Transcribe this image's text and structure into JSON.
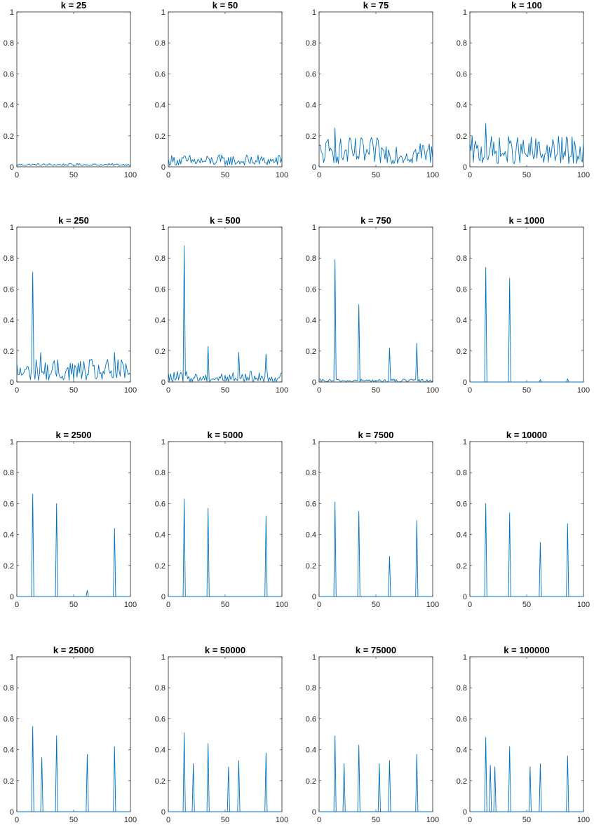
{
  "colors": {
    "series": "#0072BD",
    "axis": "#262626"
  },
  "chart_data": [
    {
      "type": "line",
      "title": "k = 25",
      "xlim": [
        0,
        100
      ],
      "ylim": [
        0,
        1
      ],
      "xticks": [
        0,
        50,
        100
      ],
      "yticks": [
        0,
        0.2,
        0.4,
        0.6,
        0.8,
        1
      ],
      "grid": false,
      "baseline": "noise",
      "noise": [
        0.008,
        0.022
      ],
      "peaks": []
    },
    {
      "type": "line",
      "title": "k = 50",
      "xlim": [
        0,
        100
      ],
      "ylim": [
        0,
        1
      ],
      "xticks": [
        0,
        50,
        100
      ],
      "yticks": [
        0,
        0.2,
        0.4,
        0.6,
        0.8,
        1
      ],
      "grid": false,
      "baseline": "noise",
      "noise": [
        0.01,
        0.08
      ],
      "peaks": []
    },
    {
      "type": "line",
      "title": "k = 75",
      "xlim": [
        0,
        100
      ],
      "ylim": [
        0,
        1
      ],
      "xticks": [
        0,
        50,
        100
      ],
      "yticks": [
        0,
        0.2,
        0.4,
        0.6,
        0.8,
        1
      ],
      "grid": false,
      "baseline": "noise",
      "noise": [
        0.02,
        0.19
      ],
      "peaks": [
        [
          14,
          0.25
        ]
      ]
    },
    {
      "type": "line",
      "title": "k = 100",
      "xlim": [
        0,
        100
      ],
      "ylim": [
        0,
        1
      ],
      "xticks": [
        0,
        50,
        100
      ],
      "yticks": [
        0,
        0.2,
        0.4,
        0.6,
        0.8,
        1
      ],
      "grid": false,
      "baseline": "noise",
      "noise": [
        0.02,
        0.2
      ],
      "peaks": [
        [
          14,
          0.28
        ]
      ]
    },
    {
      "type": "line",
      "title": "k = 250",
      "xlim": [
        0,
        100
      ],
      "ylim": [
        0,
        1
      ],
      "xticks": [
        0,
        50,
        100
      ],
      "yticks": [
        0,
        0.2,
        0.4,
        0.6,
        0.8,
        1
      ],
      "grid": false,
      "baseline": "noise",
      "noise": [
        0.01,
        0.15
      ],
      "peaks": [
        [
          14,
          0.71
        ],
        [
          21,
          0.19
        ],
        [
          86,
          0.19
        ]
      ]
    },
    {
      "type": "line",
      "title": "k = 500",
      "xlim": [
        0,
        100
      ],
      "ylim": [
        0,
        1
      ],
      "xticks": [
        0,
        50,
        100
      ],
      "yticks": [
        0,
        0.2,
        0.4,
        0.6,
        0.8,
        1
      ],
      "grid": false,
      "baseline": "noise",
      "noise": [
        0.0,
        0.07
      ],
      "peaks": [
        [
          14,
          0.88
        ],
        [
          35,
          0.23
        ],
        [
          62,
          0.19
        ],
        [
          86,
          0.18
        ]
      ]
    },
    {
      "type": "line",
      "title": "k = 750",
      "xlim": [
        0,
        100
      ],
      "ylim": [
        0,
        1
      ],
      "xticks": [
        0,
        50,
        100
      ],
      "yticks": [
        0,
        0.2,
        0.4,
        0.6,
        0.8,
        1
      ],
      "grid": false,
      "baseline": "noise",
      "noise": [
        0.0,
        0.02
      ],
      "peaks": [
        [
          14,
          0.79
        ],
        [
          35,
          0.5
        ],
        [
          62,
          0.22
        ],
        [
          86,
          0.25
        ]
      ]
    },
    {
      "type": "line",
      "title": "k = 1000",
      "xlim": [
        0,
        100
      ],
      "ylim": [
        0,
        1
      ],
      "xticks": [
        0,
        50,
        100
      ],
      "yticks": [
        0,
        0.2,
        0.4,
        0.6,
        0.8,
        1
      ],
      "grid": false,
      "baseline": "flat",
      "noise": [
        0,
        0
      ],
      "peaks": [
        [
          14,
          0.74
        ],
        [
          35,
          0.67
        ],
        [
          62,
          0.015
        ],
        [
          86,
          0.02
        ]
      ]
    },
    {
      "type": "line",
      "title": "k = 2500",
      "xlim": [
        0,
        100
      ],
      "ylim": [
        0,
        1
      ],
      "xticks": [
        0,
        50,
        100
      ],
      "yticks": [
        0,
        0.2,
        0.4,
        0.6,
        0.8,
        1
      ],
      "grid": false,
      "baseline": "flat",
      "noise": [
        0,
        0
      ],
      "peaks": [
        [
          14,
          0.66
        ],
        [
          35,
          0.6
        ],
        [
          62,
          0.04
        ],
        [
          86,
          0.44
        ]
      ]
    },
    {
      "type": "line",
      "title": "k = 5000",
      "xlim": [
        0,
        100
      ],
      "ylim": [
        0,
        1
      ],
      "xticks": [
        0,
        50,
        100
      ],
      "yticks": [
        0,
        0.2,
        0.4,
        0.6,
        0.8,
        1
      ],
      "grid": false,
      "baseline": "flat",
      "noise": [
        0,
        0
      ],
      "peaks": [
        [
          14,
          0.63
        ],
        [
          35,
          0.57
        ],
        [
          86,
          0.52
        ]
      ]
    },
    {
      "type": "line",
      "title": "k = 7500",
      "xlim": [
        0,
        100
      ],
      "ylim": [
        0,
        1
      ],
      "xticks": [
        0,
        50,
        100
      ],
      "yticks": [
        0,
        0.2,
        0.4,
        0.6,
        0.8,
        1
      ],
      "grid": false,
      "baseline": "flat",
      "noise": [
        0,
        0
      ],
      "peaks": [
        [
          14,
          0.61
        ],
        [
          35,
          0.55
        ],
        [
          62,
          0.26
        ],
        [
          86,
          0.49
        ]
      ]
    },
    {
      "type": "line",
      "title": "k = 10000",
      "xlim": [
        0,
        100
      ],
      "ylim": [
        0,
        1
      ],
      "xticks": [
        0,
        50,
        100
      ],
      "yticks": [
        0,
        0.2,
        0.4,
        0.6,
        0.8,
        1
      ],
      "grid": false,
      "baseline": "flat",
      "noise": [
        0,
        0
      ],
      "peaks": [
        [
          14,
          0.6
        ],
        [
          35,
          0.54
        ],
        [
          62,
          0.35
        ],
        [
          86,
          0.47
        ]
      ]
    },
    {
      "type": "line",
      "title": "k = 25000",
      "xlim": [
        0,
        100
      ],
      "ylim": [
        0,
        1
      ],
      "xticks": [
        0,
        50,
        100
      ],
      "yticks": [
        0,
        0.2,
        0.4,
        0.6,
        0.8,
        1
      ],
      "grid": false,
      "baseline": "flat",
      "noise": [
        0,
        0
      ],
      "peaks": [
        [
          14,
          0.55
        ],
        [
          22,
          0.35
        ],
        [
          35,
          0.49
        ],
        [
          62,
          0.37
        ],
        [
          86,
          0.42
        ]
      ]
    },
    {
      "type": "line",
      "title": "k = 50000",
      "xlim": [
        0,
        100
      ],
      "ylim": [
        0,
        1
      ],
      "xticks": [
        0,
        50,
        100
      ],
      "yticks": [
        0,
        0.2,
        0.4,
        0.6,
        0.8,
        1
      ],
      "grid": false,
      "baseline": "flat",
      "noise": [
        0,
        0
      ],
      "peaks": [
        [
          14,
          0.51
        ],
        [
          22,
          0.31
        ],
        [
          35,
          0.44
        ],
        [
          53,
          0.29
        ],
        [
          62,
          0.33
        ],
        [
          86,
          0.38
        ]
      ]
    },
    {
      "type": "line",
      "title": "k = 75000",
      "xlim": [
        0,
        100
      ],
      "ylim": [
        0,
        1
      ],
      "xticks": [
        0,
        50,
        100
      ],
      "yticks": [
        0,
        0.2,
        0.4,
        0.6,
        0.8,
        1
      ],
      "grid": false,
      "baseline": "flat",
      "noise": [
        0,
        0
      ],
      "peaks": [
        [
          14,
          0.49
        ],
        [
          22,
          0.31
        ],
        [
          35,
          0.43
        ],
        [
          53,
          0.31
        ],
        [
          62,
          0.33
        ],
        [
          86,
          0.37
        ]
      ]
    },
    {
      "type": "line",
      "title": "k = 100000",
      "xlim": [
        0,
        100
      ],
      "ylim": [
        0,
        1
      ],
      "xticks": [
        0,
        50,
        100
      ],
      "yticks": [
        0,
        0.2,
        0.4,
        0.6,
        0.8,
        1
      ],
      "grid": false,
      "baseline": "flat",
      "noise": [
        0,
        0
      ],
      "peaks": [
        [
          14,
          0.48
        ],
        [
          18,
          0.3
        ],
        [
          22,
          0.29
        ],
        [
          35,
          0.42
        ],
        [
          53,
          0.29
        ],
        [
          62,
          0.31
        ],
        [
          86,
          0.36
        ]
      ]
    }
  ]
}
